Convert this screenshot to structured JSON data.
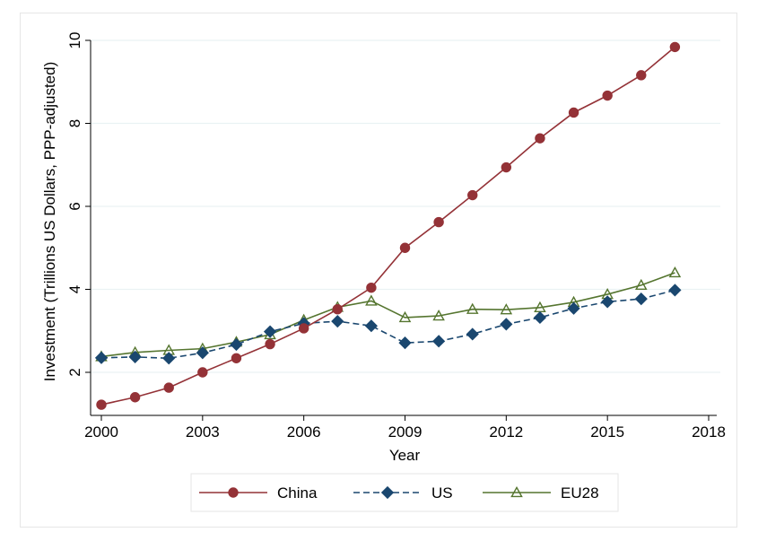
{
  "chart_data": {
    "type": "line",
    "title": "",
    "xlabel": "Year",
    "ylabel": "Investment (Trillions US Dollars, PPP-adjusted)",
    "xlim": [
      2000,
      2018
    ],
    "ylim": [
      1,
      10.3
    ],
    "xticks": [
      2000,
      2003,
      2006,
      2009,
      2012,
      2015,
      2018
    ],
    "yticks": [
      2,
      4,
      6,
      8,
      10
    ],
    "grid": true,
    "legend_position": "bottom",
    "x": [
      2000,
      2001,
      2002,
      2003,
      2004,
      2005,
      2006,
      2007,
      2008,
      2009,
      2010,
      2011,
      2012,
      2013,
      2014,
      2015,
      2016,
      2017
    ],
    "series": [
      {
        "name": "China",
        "color": "#943237",
        "marker": "circle",
        "line_style": "solid",
        "values": [
          1.22,
          1.4,
          1.63,
          2.0,
          2.34,
          2.68,
          3.06,
          3.52,
          4.04,
          5.0,
          5.62,
          6.27,
          6.94,
          7.64,
          8.26,
          8.67,
          9.16,
          9.84
        ]
      },
      {
        "name": "US",
        "color": "#1a476f",
        "marker": "diamond",
        "line_style": "dashed",
        "values": [
          2.35,
          2.37,
          2.34,
          2.47,
          2.67,
          2.98,
          3.18,
          3.23,
          3.12,
          2.71,
          2.75,
          2.92,
          3.16,
          3.32,
          3.54,
          3.7,
          3.77,
          3.98
        ]
      },
      {
        "name": "EU28",
        "color": "#55752f",
        "marker": "triangle-open",
        "line_style": "solid",
        "values": [
          2.38,
          2.48,
          2.53,
          2.57,
          2.73,
          2.91,
          3.26,
          3.57,
          3.72,
          3.32,
          3.36,
          3.52,
          3.51,
          3.56,
          3.69,
          3.88,
          4.1,
          4.4
        ]
      }
    ]
  }
}
